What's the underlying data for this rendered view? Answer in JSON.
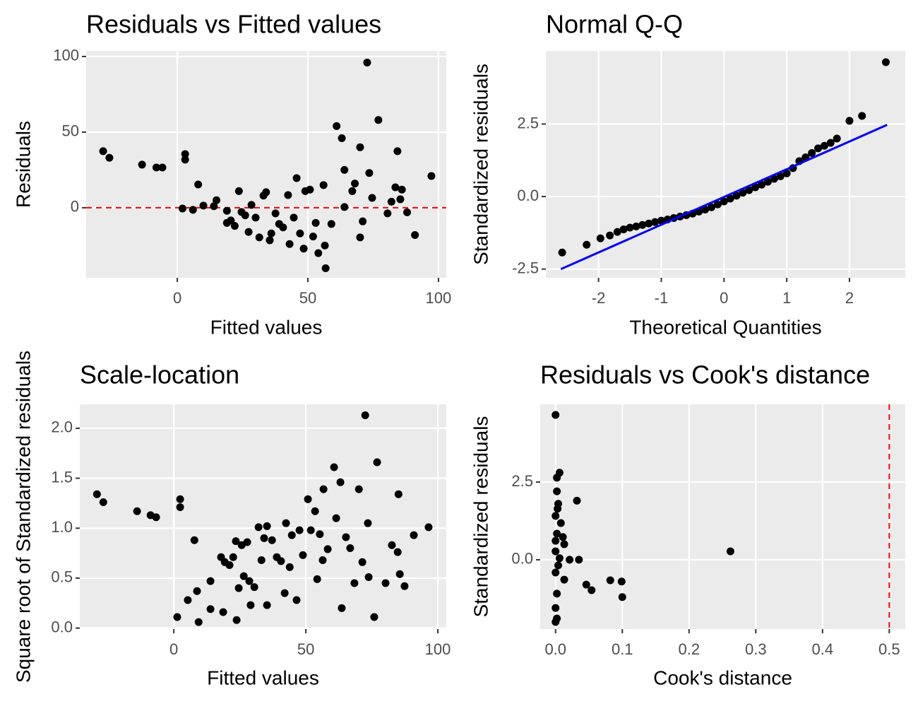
{
  "chart_data": [
    {
      "type": "scatter",
      "title": "Residuals vs Fitted values",
      "x_label": "Fitted values",
      "y_label": "Residuals",
      "color": "#000000",
      "xlim": [
        -34.9,
        103
      ],
      "ylim": [
        -46.3,
        103.7
      ],
      "xticks": [
        0,
        50,
        100
      ],
      "yticks": [
        0,
        50,
        100
      ],
      "hline": 0,
      "line_color": "#ff0000",
      "x": [
        -28.4,
        -26,
        -13.5,
        -8,
        -5.7,
        3,
        3,
        2,
        6,
        8,
        10,
        14,
        15,
        19,
        19,
        20.5,
        22,
        23.6,
        24.6,
        26,
        27.3,
        28.4,
        30,
        31.4,
        33,
        34,
        35.4,
        36,
        37.6,
        39,
        40.5,
        42.4,
        43,
        44.6,
        45.7,
        47,
        48.4,
        49,
        50.8,
        52,
        53,
        54,
        56,
        56.5,
        56.8,
        59,
        61,
        63,
        64,
        64,
        67,
        68,
        70,
        70,
        71,
        72.7,
        73.5,
        74.6,
        77,
        80.5,
        82,
        83.5,
        84.3,
        85.4,
        86,
        88,
        91,
        97.3
      ],
      "values": [
        37.4,
        33,
        28.5,
        26.6,
        26.6,
        35.5,
        31.8,
        -0.5,
        -1.4,
        15.4,
        1.4,
        1,
        5,
        -2,
        -10,
        -8.4,
        -12,
        11,
        -2.8,
        -5,
        -16,
        1.9,
        -6.5,
        -19.6,
        8,
        10.3,
        -21.5,
        -17,
        -3.7,
        -10.7,
        -13,
        8.4,
        -24,
        -6.5,
        19.6,
        -17,
        -27,
        11,
        12,
        -19,
        -10,
        -30,
        15,
        -25,
        -40,
        -10.7,
        54,
        46,
        25,
        0.5,
        11,
        16,
        -19.6,
        40,
        -9,
        96,
        23,
        6.5,
        58,
        -3.7,
        4,
        13.5,
        37.4,
        5.6,
        12,
        -3,
        -18,
        21
      ]
    },
    {
      "type": "scatter",
      "title": "Normal Q-Q",
      "x_label": "Theoretical Quantities",
      "y_label": "Standardized residuals",
      "color": "#000000",
      "xlim": [
        -2.84,
        2.89
      ],
      "ylim": [
        -2.8,
        5.02
      ],
      "xticks": [
        -2,
        -1,
        0,
        1,
        2
      ],
      "yticks": [
        -2.5,
        {
          "value": 0,
          "label": "0.0"
        },
        2.5
      ],
      "ref_line": {
        "x": [
          -2.6,
          2.6
        ],
        "y": [
          -2.5,
          2.47
        ],
        "color": "#0000ff"
      },
      "x": [
        -2.58,
        -2.19,
        -1.97,
        -1.82,
        -1.7,
        -1.6,
        -1.5,
        -1.4,
        -1.3,
        -1.2,
        -1.1,
        -1.0,
        -0.9,
        -0.8,
        -0.7,
        -0.6,
        -0.5,
        -0.4,
        -0.3,
        -0.2,
        -0.1,
        0,
        0.1,
        0.2,
        0.3,
        0.4,
        0.5,
        0.6,
        0.7,
        0.8,
        0.9,
        1.0,
        1.1,
        1.2,
        1.3,
        1.4,
        1.5,
        1.6,
        1.7,
        1.8,
        2.0,
        2.2,
        2.58
      ],
      "values": [
        -1.93,
        -1.66,
        -1.44,
        -1.34,
        -1.22,
        -1.13,
        -1.07,
        -1.03,
        -0.98,
        -0.93,
        -0.88,
        -0.83,
        -0.79,
        -0.74,
        -0.69,
        -0.64,
        -0.59,
        -0.52,
        -0.45,
        -0.37,
        -0.27,
        -0.17,
        -0.07,
        0.03,
        0.13,
        0.22,
        0.32,
        0.41,
        0.51,
        0.61,
        0.7,
        0.8,
        0.98,
        1.22,
        1.35,
        1.5,
        1.66,
        1.75,
        1.85,
        2.0,
        2.61,
        2.78,
        4.63
      ]
    },
    {
      "type": "scatter",
      "title": "Scale-location",
      "x_label": "Fitted values",
      "y_label": "Square root of Standardized residuals",
      "color": "#000000",
      "xlim": [
        -35.6,
        103.2
      ],
      "ylim": [
        -0.01,
        2.24
      ],
      "xticks": [
        0,
        50,
        100
      ],
      "yticks": [
        {
          "value": 0,
          "label": "0.0"
        },
        0.5,
        {
          "value": 1,
          "label": "1.0"
        },
        1.5,
        {
          "value": 2,
          "label": "2.0"
        }
      ],
      "x": [
        -29.1,
        -26.7,
        -13.9,
        -8.8,
        -6.7,
        2.4,
        2.4,
        1.3,
        5.3,
        7.8,
        9.4,
        8.8,
        13.9,
        13.9,
        17.9,
        18.7,
        19.3,
        21.1,
        22.5,
        23.5,
        23.8,
        24.6,
        25.7,
        26.5,
        27.8,
        28.6,
        29.1,
        30.5,
        32.1,
        33.2,
        34.2,
        35.3,
        35.3,
        37.2,
        39,
        40.6,
        42,
        42.5,
        43.9,
        44.7,
        46.5,
        47.6,
        48.9,
        50.8,
        51.9,
        53.5,
        54.3,
        55.3,
        56.4,
        56.7,
        58.3,
        60.7,
        61.5,
        63.1,
        63.6,
        65.2,
        66.8,
        68.4,
        70.1,
        71.4,
        72.5,
        73.5,
        73.8,
        75.9,
        77,
        80.2,
        82.6,
        84.8,
        85.1,
        85.6,
        87.4,
        90.9,
        96.5
      ],
      "values": [
        1.34,
        1.26,
        1.17,
        1.13,
        1.11,
        1.29,
        1.21,
        0.11,
        0.28,
        0.88,
        0.06,
        0.37,
        0.47,
        0.19,
        0.71,
        0.16,
        0.66,
        0.63,
        0.71,
        0.87,
        0.08,
        0.4,
        0.83,
        0.52,
        0.86,
        0.47,
        0.23,
        0.41,
        1.01,
        0.68,
        0.9,
        1.02,
        0.23,
        0.88,
        0.71,
        0.67,
        0.35,
        1.05,
        0.61,
        0.93,
        0.28,
        0.98,
        0.73,
        1.29,
        0.98,
        1.17,
        0.49,
        0.94,
        0.68,
        1.39,
        0.79,
        1.61,
        1.1,
        1.46,
        0.2,
        0.91,
        0.8,
        0.45,
        1.39,
        0.66,
        2.13,
        1.05,
        0.51,
        0.11,
        1.66,
        0.45,
        0.83,
        0.76,
        1.34,
        0.54,
        0.42,
        0.93,
        1.01
      ]
    },
    {
      "type": "scatter",
      "title": "Residuals vs Cook's distance",
      "x_label": "Cook's distance",
      "y_label": "Standardized residuals",
      "color": "#000000",
      "xlim": [
        -0.023,
        0.524
      ],
      "ylim": [
        -2.23,
        5.0
      ],
      "xticks": [
        {
          "value": 0,
          "label": "0.0"
        },
        0.1,
        0.2,
        0.3,
        0.4,
        0.5
      ],
      "yticks": [
        {
          "value": 0,
          "label": "0.0"
        },
        2.5
      ],
      "vline": 0.5,
      "line_color": "#ff0000",
      "x": [
        0,
        0.006,
        0.002,
        0.002,
        0.032,
        0.004,
        0,
        0.008,
        0.002,
        0.013,
        0,
        0.021,
        0.035,
        0.004,
        0,
        0.046,
        0.054,
        0.082,
        0.099,
        0.1,
        0.002,
        0,
        0.002,
        0,
        0.262,
        0.011,
        0.003,
        0.006,
        0.013,
        0
      ],
      "values": [
        4.66,
        2.8,
        2.64,
        2.2,
        1.9,
        1.8,
        1.41,
        1.18,
        0.84,
        0.5,
        0.27,
        0,
        0,
        -0.18,
        -0.41,
        -0.8,
        -0.98,
        -0.66,
        -0.7,
        -1.2,
        -1.09,
        -1.55,
        -1.89,
        -2.0,
        0.27,
        0.73,
        1.64,
        0.05,
        -0.64,
        0.61
      ]
    }
  ]
}
